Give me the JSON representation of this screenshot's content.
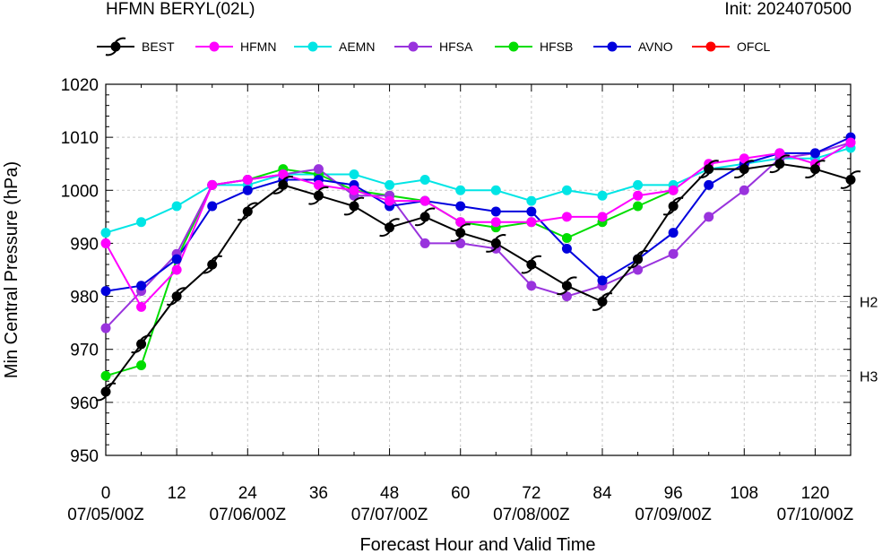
{
  "header": {
    "title": "HFMN BERYL(02L)",
    "init": "Init: 2024070500"
  },
  "chart_data": {
    "type": "line",
    "title": "HFMN BERYL(02L)",
    "subtitle": "Init: 2024070500",
    "xlabel": "Forecast Hour and Valid Time",
    "ylabel": "Min Central Pressure (hPa)",
    "xlim": [
      0,
      126
    ],
    "ylim": [
      950,
      1020
    ],
    "x_ticks": [
      0,
      12,
      24,
      36,
      48,
      60,
      72,
      84,
      96,
      108,
      120
    ],
    "x_tick_labels": [
      "0",
      "12",
      "24",
      "36",
      "48",
      "60",
      "72",
      "84",
      "96",
      "108",
      "120"
    ],
    "date_ticks": [
      {
        "x": 0,
        "label": "07/05/00Z"
      },
      {
        "x": 24,
        "label": "07/06/00Z"
      },
      {
        "x": 48,
        "label": "07/07/00Z"
      },
      {
        "x": 72,
        "label": "07/08/00Z"
      },
      {
        "x": 96,
        "label": "07/09/00Z"
      },
      {
        "x": 120,
        "label": "07/10/00Z"
      }
    ],
    "y_ticks": [
      950,
      960,
      970,
      980,
      990,
      1000,
      1010,
      1020
    ],
    "reference_lines": [
      {
        "y": 979,
        "label": "H2"
      },
      {
        "y": 965,
        "label": "H3"
      }
    ],
    "grid": true,
    "legend_position": "top",
    "series": [
      {
        "name": "BEST",
        "color": "#000000",
        "marker": "hurricane-symbol",
        "x": [
          0,
          6,
          12,
          18,
          24,
          30,
          36,
          42,
          48,
          54,
          60,
          66,
          72,
          78,
          84,
          90,
          96,
          102,
          108,
          114,
          120,
          126
        ],
        "y": [
          962,
          971,
          980,
          986,
          996,
          1001,
          999,
          997,
          993,
          995,
          992,
          990,
          986,
          982,
          979,
          987,
          997,
          1004,
          1004,
          1005,
          1004,
          1002
        ]
      },
      {
        "name": "HFMN",
        "color": "#ff00ff",
        "marker": "circle",
        "x": [
          0,
          6,
          12,
          18,
          24,
          30,
          36,
          42,
          48,
          54,
          60,
          66,
          72,
          78,
          84,
          90,
          96,
          102,
          108,
          114,
          120,
          126
        ],
        "y": [
          990,
          978,
          985,
          1001,
          1002,
          1003,
          1001,
          1000,
          998,
          998,
          994,
          994,
          994,
          995,
          995,
          999,
          1000,
          1005,
          1006,
          1007,
          1005,
          1009
        ]
      },
      {
        "name": "AEMN",
        "color": "#00e5e5",
        "marker": "circle",
        "x": [
          0,
          6,
          12,
          18,
          24,
          30,
          36,
          42,
          48,
          54,
          60,
          66,
          72,
          78,
          84,
          90,
          96,
          102,
          108,
          114,
          120,
          126
        ],
        "y": [
          992,
          994,
          997,
          1001,
          1001,
          1003,
          1003,
          1003,
          1001,
          1002,
          1000,
          1000,
          998,
          1000,
          999,
          1001,
          1001,
          1004,
          1005,
          1006,
          1006,
          1008
        ]
      },
      {
        "name": "HFSA",
        "color": "#9933dd",
        "marker": "circle",
        "x": [
          0,
          6,
          12,
          18,
          24,
          30,
          36,
          42,
          48,
          54,
          60,
          66,
          72,
          78,
          84,
          90,
          96,
          102,
          108,
          114,
          120,
          126
        ],
        "y": [
          974,
          981,
          988,
          1001,
          1002,
          1003,
          1004,
          999,
          999,
          990,
          990,
          989,
          982,
          980,
          982,
          985,
          988,
          995,
          1000,
          1006,
          1007,
          1009
        ]
      },
      {
        "name": "HFSB",
        "color": "#00dd00",
        "marker": "circle",
        "x": [
          0,
          6,
          12,
          18,
          24,
          30,
          36,
          42,
          48,
          54,
          60,
          66,
          72,
          78,
          84,
          90,
          96
        ],
        "y": [
          965,
          967,
          987,
          1001,
          1002,
          1004,
          1003,
          1000,
          999,
          998,
          994,
          993,
          994,
          991,
          994,
          997,
          1000
        ]
      },
      {
        "name": "AVNO",
        "color": "#0000dd",
        "marker": "circle",
        "x": [
          0,
          6,
          12,
          18,
          24,
          30,
          36,
          42,
          48,
          54,
          60,
          66,
          72,
          78,
          84,
          90,
          96,
          102,
          108,
          114,
          120,
          126
        ],
        "y": [
          981,
          982,
          987,
          997,
          1000,
          1002,
          1002,
          1001,
          997,
          998,
          997,
          996,
          996,
          989,
          983,
          987,
          992,
          1001,
          1005,
          1007,
          1007,
          1010
        ]
      },
      {
        "name": "OFCL",
        "color": "#ff0000",
        "marker": "circle",
        "x": [],
        "y": []
      }
    ]
  }
}
